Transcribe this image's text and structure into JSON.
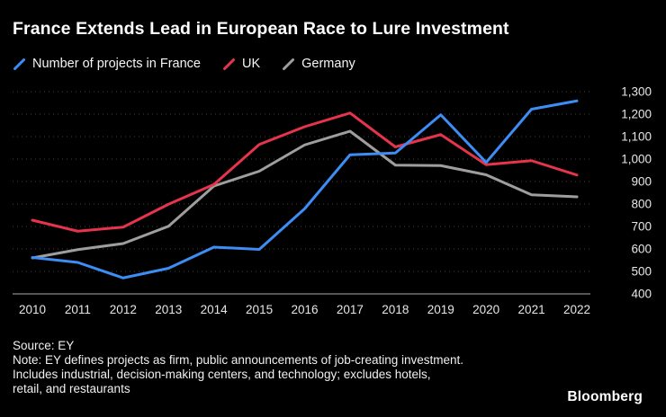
{
  "title": "France Extends Lead in European Race to Lure Investment",
  "legend": [
    {
      "label": "Number of projects in France",
      "color": "#3d8df5"
    },
    {
      "label": "UK",
      "color": "#e5344c"
    },
    {
      "label": "Germany",
      "color": "#9e9e9e"
    }
  ],
  "chart_data": {
    "type": "line",
    "x": [
      2010,
      2011,
      2012,
      2013,
      2014,
      2015,
      2016,
      2017,
      2018,
      2019,
      2020,
      2021,
      2022
    ],
    "series": [
      {
        "name": "Number of projects in France",
        "color": "#3d8df5",
        "values": [
          562,
          540,
          471,
          514,
          608,
          598,
          779,
          1019,
          1027,
          1197,
          985,
          1222,
          1259
        ]
      },
      {
        "name": "UK",
        "color": "#e5344c",
        "values": [
          728,
          679,
          697,
          799,
          887,
          1065,
          1144,
          1205,
          1054,
          1109,
          975,
          993,
          929
        ]
      },
      {
        "name": "Germany",
        "color": "#9e9e9e",
        "values": [
          560,
          597,
          624,
          701,
          880,
          946,
          1063,
          1124,
          973,
          971,
          930,
          841,
          832
        ]
      }
    ],
    "ylim": [
      400,
      1300
    ],
    "yticks": [
      400,
      500,
      600,
      700,
      800,
      900,
      1000,
      1100,
      1200,
      1300
    ],
    "grid": "dotted-horizontal",
    "legend_position": "top-left",
    "colors": {
      "background": "#000000",
      "gridline": "#424242",
      "axis": "#8a8a8a",
      "tick_text": "#e6e6e6"
    }
  },
  "footer": {
    "source": "Source: EY",
    "note_lines": [
      "Note: EY defines projects as firm, public announcements of job-creating investment.",
      "Includes industrial, decision-making centers, and technology; excludes hotels,",
      "retail, and restaurants"
    ],
    "brand": "Bloomberg"
  }
}
